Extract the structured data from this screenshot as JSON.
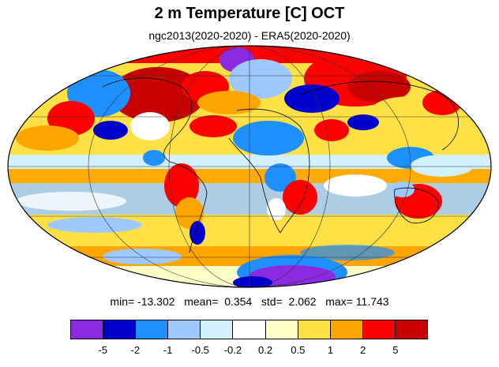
{
  "title": "2 m Temperature [C] OCT",
  "subtitle": "ngc2013(2020-2020) - ERA5(2020-2020)",
  "stats": {
    "min_label": "min=",
    "min": "-13.302",
    "mean_label": "mean=",
    "mean": "0.354",
    "std_label": "std=",
    "std": "2.062",
    "max_label": "max=",
    "max": "11.743"
  },
  "colorbar": {
    "colors": [
      "#8a2be2",
      "#0000cd",
      "#1e90ff",
      "#9ec9ff",
      "#d2f0ff",
      "#ffffff",
      "#ffffc8",
      "#ffe146",
      "#ffa500",
      "#ff0000",
      "#c80000"
    ],
    "labels": [
      "-5",
      "-2",
      "-1",
      "-0.5",
      "-0.2",
      "0.2",
      "0.5",
      "1",
      "2",
      "5"
    ]
  },
  "map": {
    "projection": "mollweide",
    "variable": "2 m temperature difference",
    "units": "C",
    "colors": {
      "warm_strong": "#c80000",
      "warm": "#ff0000",
      "orange": "#ffa500",
      "yellow": "#ffe146",
      "pale_yellow": "#ffffc8",
      "neutral": "#ffffff",
      "pale_blue": "#d2f0ff",
      "light_blue": "#9ec9ff",
      "blue": "#1e90ff",
      "dark_blue": "#0000cd",
      "purple": "#8a2be2"
    }
  }
}
